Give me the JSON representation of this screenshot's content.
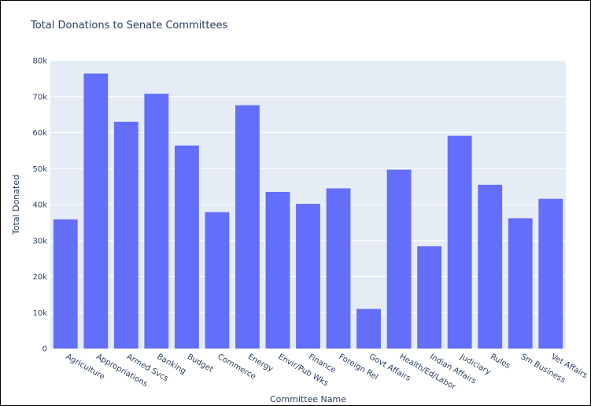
{
  "chart_data": {
    "type": "bar",
    "title": "Total Donations to Senate Committees",
    "xlabel": "Committee Name",
    "ylabel": "Total Donated",
    "categories": [
      "Agriculture",
      "Appropriations",
      "Armed Svcs",
      "Banking",
      "Budget",
      "Commerce",
      "Energy",
      "Envir/Pub Wks",
      "Finance",
      "Foreign Rel",
      "Govt Affairs",
      "Health/Ed/Labor",
      "Indian Affairs",
      "Judiciary",
      "Rules",
      "Sm Business",
      "Vet Affairs"
    ],
    "values": [
      35900,
      76400,
      63000,
      70800,
      56400,
      37900,
      67600,
      43500,
      40200,
      44500,
      11000,
      49700,
      28400,
      59100,
      45500,
      36200,
      41600
    ],
    "ylim": [
      0,
      80000
    ],
    "yticks": [
      0,
      10000,
      20000,
      30000,
      40000,
      50000,
      60000,
      70000,
      80000
    ],
    "ytick_labels": [
      "0",
      "10k",
      "20k",
      "30k",
      "40k",
      "50k",
      "60k",
      "70k",
      "80k"
    ],
    "grid": true,
    "colors": {
      "bar": "#636efa",
      "plot_bg": "#e5ecf6",
      "grid": "#ffffff",
      "text": "#2a3f5f"
    }
  }
}
